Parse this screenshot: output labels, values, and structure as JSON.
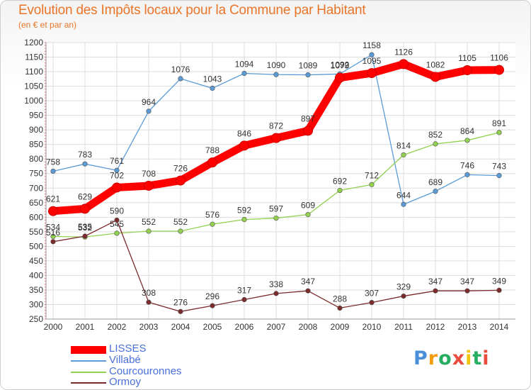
{
  "title": "Evolution des Impôts locaux pour la Commune par Habitant",
  "subtitle": "(en € et par an)",
  "chart_data": {
    "type": "line",
    "title": "Evolution des Impôts locaux pour la Commune par Habitant",
    "subtitle": "(en € et par an)",
    "x": [
      "2000",
      "2001",
      "2002",
      "2003",
      "2004",
      "2005",
      "2006",
      "2007",
      "2008",
      "2009",
      "2010",
      "2011",
      "2012",
      "2013",
      "2014"
    ],
    "ylim": [
      250,
      1200
    ],
    "yticks": [
      250,
      300,
      350,
      400,
      450,
      500,
      550,
      600,
      650,
      700,
      750,
      800,
      850,
      900,
      950,
      1000,
      1050,
      1100,
      1150,
      1200
    ],
    "grid": true,
    "legend_position": "bottom-left",
    "series": [
      {
        "name": "LISSES",
        "color": "#ff0000",
        "values": [
          621,
          629,
          702,
          708,
          726,
          788,
          846,
          872,
          897,
          1079,
          1095,
          1126,
          1082,
          1105,
          1106
        ]
      },
      {
        "name": "Villabé",
        "color": "#5b9bd5",
        "values": [
          758,
          783,
          761,
          964,
          1076,
          1043,
          1094,
          1090,
          1089,
          1092,
          1158,
          644,
          689,
          746,
          743
        ]
      },
      {
        "name": "Courcouronnes",
        "color": "#92d050",
        "values": [
          534,
          532,
          545,
          552,
          552,
          576,
          592,
          597,
          609,
          692,
          712,
          814,
          852,
          864,
          891
        ]
      },
      {
        "name": "Ormoy",
        "color": "#7b2b2b",
        "values": [
          516,
          535,
          590,
          308,
          276,
          296,
          317,
          338,
          347,
          288,
          307,
          329,
          347,
          347,
          349
        ]
      }
    ]
  },
  "legend": [
    {
      "label": "LISSES"
    },
    {
      "label": "Villabé"
    },
    {
      "label": "Courcouronnes"
    },
    {
      "label": "Ormoy"
    }
  ],
  "logo": {
    "letters": [
      "P",
      "r",
      "o",
      "x",
      "i",
      "t",
      "i"
    ],
    "colors": [
      "#4a90d9",
      "#f39c12",
      "#27ae60",
      "#e74c3c",
      "#f1c40f",
      "#27ae60",
      "#e74c3c"
    ]
  }
}
